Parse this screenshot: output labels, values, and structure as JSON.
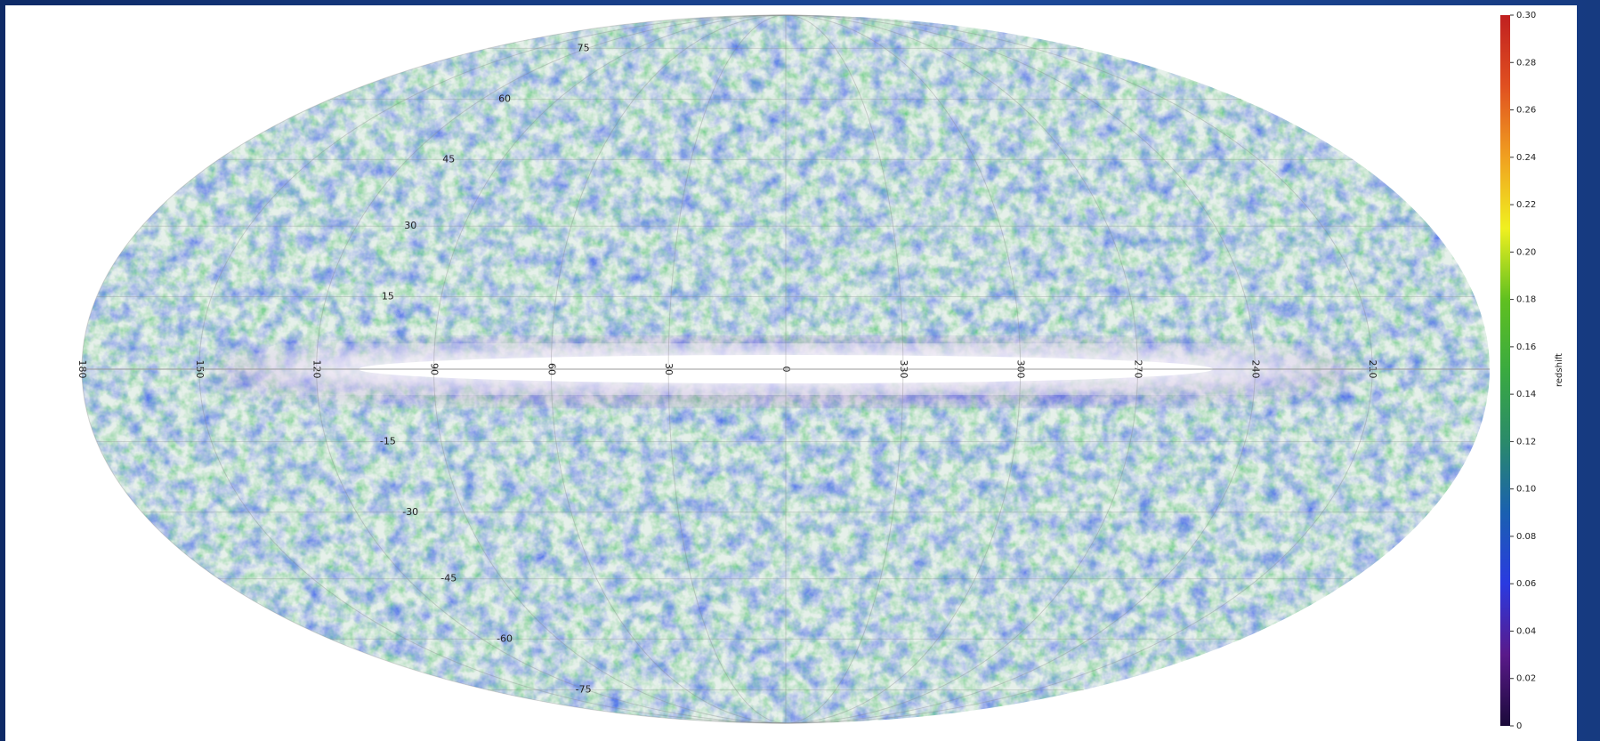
{
  "chart_data": {
    "type": "skymap",
    "projection": "mollweide",
    "lon_ticks": [
      150,
      120,
      90,
      60,
      30,
      0,
      330,
      300,
      270,
      240,
      210,
      180
    ],
    "lat_ticks": [
      75,
      60,
      45,
      30,
      15,
      -15,
      -30,
      -45,
      -60,
      -75
    ],
    "colorbar": {
      "label": "redshift",
      "clim": [
        0,
        0.3
      ],
      "ticks": [
        {
          "value": 0.3,
          "label": "0.30"
        },
        0.28,
        0.26,
        0.24,
        0.22,
        {
          "value": 0.2,
          "label": "0.20"
        },
        0.18,
        0.16,
        0.14,
        0.12,
        {
          "value": 0.1,
          "label": "0.10"
        },
        0.08,
        0.06,
        0.04,
        0.02,
        0
      ],
      "colors": [
        "#1a0a3a",
        "#5a1a8a",
        "#2a3ae0",
        "#1a60b0",
        "#2a8a6a",
        "#3aaa40",
        "#60c020",
        "#f0f020",
        "#f0a020",
        "#e05020",
        "#c02020"
      ]
    }
  }
}
